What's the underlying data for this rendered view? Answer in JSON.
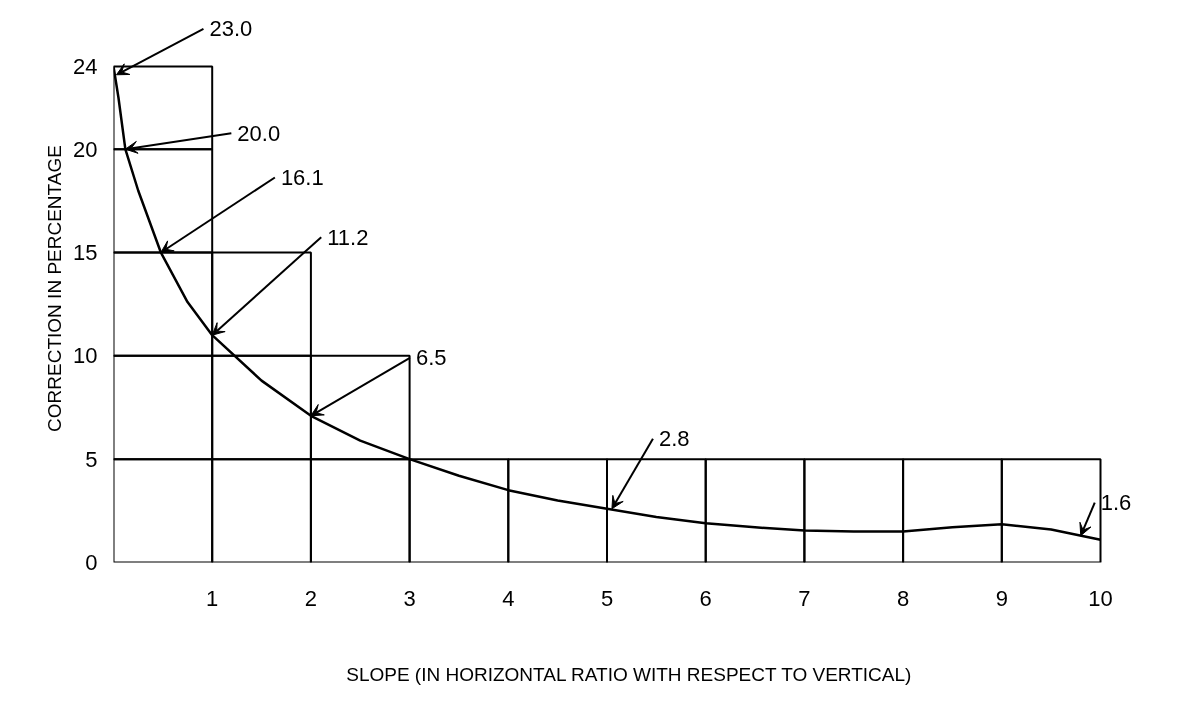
{
  "chart_data": {
    "type": "bar",
    "stacked": true,
    "xlabel": "SLOPE (IN HORIZONTAL RATIO WITH RESPECT TO VERTICAL)",
    "ylabel": "CORRECTION IN PERCENTAGE",
    "xlim": [
      0,
      10
    ],
    "ylim": [
      0,
      24
    ],
    "xticks": [
      1,
      2,
      3,
      4,
      5,
      6,
      7,
      8,
      9,
      10
    ],
    "yticks": [
      0,
      5,
      10,
      15,
      20,
      24
    ],
    "x": [
      0.5,
      1.5,
      2.5,
      3.5,
      4.5,
      5.5,
      6.5,
      7.5,
      8.5,
      9.5
    ],
    "series": [
      {
        "color": "#000000",
        "values": [
          5,
          5,
          5,
          5,
          5,
          5,
          5,
          5,
          5,
          5
        ]
      },
      {
        "color": "#000000",
        "values": [
          5,
          5,
          5,
          null,
          null,
          null,
          null,
          null,
          null,
          null
        ]
      },
      {
        "color": "#000000",
        "values": [
          5,
          5,
          null,
          null,
          null,
          null,
          null,
          null,
          null,
          null
        ]
      },
      {
        "color": "#000000",
        "values": [
          5,
          null,
          null,
          null,
          null,
          null,
          null,
          null,
          null,
          null
        ]
      },
      {
        "color": "#000000",
        "values": [
          4,
          null,
          null,
          null,
          null,
          null,
          null,
          null,
          null,
          null
        ]
      },
      {
        "type": "line",
        "color": "#000000",
        "x": [
          0,
          0.05,
          0.12,
          0.25,
          0.48,
          0.75,
          1,
          1.5,
          2,
          2.5,
          3,
          3.5,
          4,
          4.5,
          5,
          5.5,
          6,
          6.5,
          7,
          7.5,
          8,
          8.5,
          9,
          9.5,
          10
        ],
        "values": [
          24,
          22.5,
          20,
          18,
          15,
          12.6,
          11,
          8.8,
          7.1,
          5.9,
          5,
          4.2,
          3.5,
          3,
          2.6,
          2.2,
          1.9,
          1.7,
          1.55,
          1.5,
          1.5,
          1.7,
          1.85,
          1.6,
          1.1
        ]
      }
    ],
    "annotations": [
      {
        "text": "23.0",
        "x": 0.03,
        "y": 23.6
      },
      {
        "text": "20.0",
        "x": 0.12,
        "y": 20
      },
      {
        "text": "16.1",
        "x": 0.48,
        "y": 15
      },
      {
        "text": "11.2",
        "x": 1,
        "y": 11
      },
      {
        "text": "6.5",
        "x": 2,
        "y": 7.1
      },
      {
        "text": "2.8",
        "x": 5.05,
        "y": 2.6
      },
      {
        "text": "1.6",
        "x": 9.8,
        "y": 1.3
      }
    ]
  }
}
